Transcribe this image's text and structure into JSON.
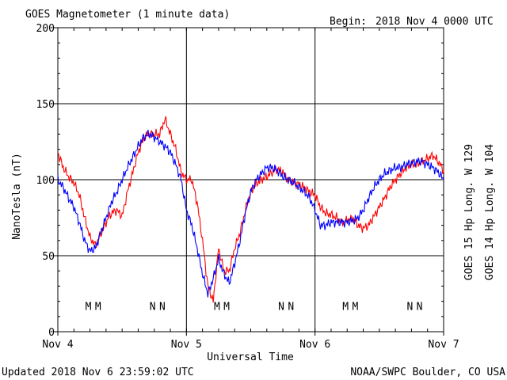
{
  "header": {
    "title": "GOES Magnetometer (1 minute data)",
    "begin_label": "Begin:",
    "begin_value": "2018 Nov 4 0000 UTC"
  },
  "footer": {
    "updated": "Updated 2018 Nov  6 23:59:02 UTC",
    "credit": "NOAA/SWPC Boulder, CO USA"
  },
  "colors": {
    "goes15": "#ff0000",
    "goes14": "#0000ff"
  },
  "chart_data": {
    "type": "line",
    "title": "GOES Magnetometer (1 minute data)",
    "xlabel": "Universal Time",
    "ylabel": "NanoTesla (nT)",
    "xlim": [
      0,
      72
    ],
    "ylim": [
      0,
      200
    ],
    "y_ticks": [
      0,
      50,
      100,
      150,
      200
    ],
    "x_ticks": [
      {
        "value": 0,
        "label": "Nov 4"
      },
      {
        "value": 24,
        "label": "Nov 5"
      },
      {
        "value": 48,
        "label": "Nov 6"
      },
      {
        "value": 72,
        "label": "Nov 7"
      }
    ],
    "grid": true,
    "series": [
      {
        "name": "GOES 15 Hp  Long. W 129",
        "color": "#ff0000",
        "x": [
          0,
          1,
          2,
          3,
          4,
          5,
          6,
          7,
          8,
          9,
          10,
          11,
          12,
          13,
          14,
          15,
          16,
          17,
          18,
          19,
          20,
          21,
          22,
          23,
          24,
          25,
          26,
          27,
          28,
          29,
          30,
          31,
          32,
          33,
          34,
          35,
          36,
          37,
          38,
          39,
          40,
          41,
          42,
          43,
          44,
          45,
          46,
          47,
          48,
          49,
          50,
          51,
          52,
          53,
          54,
          55,
          56,
          57,
          58,
          59,
          60,
          61,
          62,
          63,
          64,
          65,
          66,
          67,
          68,
          69,
          70,
          71,
          72
        ],
        "y": [
          118,
          108,
          102,
          98,
          90,
          75,
          62,
          57,
          64,
          72,
          78,
          80,
          76,
          92,
          105,
          118,
          127,
          130,
          130,
          130,
          140,
          130,
          120,
          105,
          100,
          100,
          85,
          60,
          30,
          20,
          55,
          40,
          40,
          55,
          65,
          80,
          92,
          97,
          100,
          102,
          105,
          107,
          105,
          100,
          98,
          97,
          95,
          92,
          90,
          82,
          78,
          77,
          75,
          72,
          73,
          75,
          70,
          68,
          70,
          76,
          82,
          88,
          95,
          100,
          104,
          108,
          110,
          110,
          112,
          114,
          116,
          112,
          106
        ]
      },
      {
        "name": "GOES 14 Hp  Long. W 104",
        "color": "#0000ff",
        "x": [
          0,
          1,
          2,
          3,
          4,
          5,
          6,
          7,
          8,
          9,
          10,
          11,
          12,
          13,
          14,
          15,
          16,
          17,
          18,
          19,
          20,
          21,
          22,
          23,
          24,
          25,
          26,
          27,
          28,
          29,
          30,
          31,
          32,
          33,
          34,
          35,
          36,
          37,
          38,
          39,
          40,
          41,
          42,
          43,
          44,
          45,
          46,
          47,
          48,
          49,
          50,
          51,
          52,
          53,
          54,
          55,
          56,
          57,
          58,
          59,
          60,
          61,
          62,
          63,
          64,
          65,
          66,
          67,
          68,
          69,
          70,
          71,
          72
        ],
        "y": [
          100,
          95,
          88,
          82,
          72,
          60,
          53,
          55,
          65,
          75,
          85,
          92,
          100,
          108,
          115,
          122,
          128,
          130,
          128,
          125,
          122,
          118,
          110,
          100,
          80,
          70,
          55,
          38,
          25,
          35,
          48,
          38,
          32,
          45,
          60,
          78,
          92,
          100,
          104,
          108,
          108,
          106,
          102,
          100,
          98,
          95,
          92,
          88,
          80,
          70,
          70,
          72,
          72,
          72,
          72,
          73,
          75,
          80,
          88,
          95,
          100,
          104,
          106,
          108,
          108,
          110,
          111,
          112,
          112,
          110,
          108,
          105,
          100
        ]
      }
    ],
    "annotations": [
      {
        "x": 5.7,
        "label": "M",
        "series": 1
      },
      {
        "x": 7.5,
        "label": "M",
        "series": 0
      },
      {
        "x": 17.7,
        "label": "N",
        "series": 1
      },
      {
        "x": 19.5,
        "label": "N",
        "series": 0
      },
      {
        "x": 29.7,
        "label": "M",
        "series": 1
      },
      {
        "x": 31.5,
        "label": "M",
        "series": 0
      },
      {
        "x": 41.7,
        "label": "N",
        "series": 1
      },
      {
        "x": 43.5,
        "label": "N",
        "series": 0
      },
      {
        "x": 53.7,
        "label": "M",
        "series": 1
      },
      {
        "x": 55.5,
        "label": "M",
        "series": 0
      },
      {
        "x": 65.7,
        "label": "N",
        "series": 1
      },
      {
        "x": 67.5,
        "label": "N",
        "series": 0
      }
    ],
    "annotation_y": 17
  }
}
